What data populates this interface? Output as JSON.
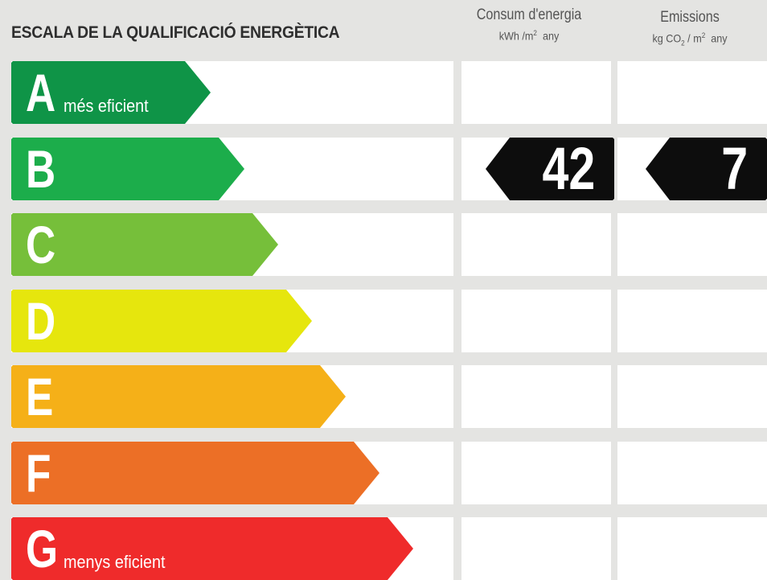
{
  "title": "ESCALA DE LA QUALIFICACIÓ ENERGÈTICA",
  "columns": {
    "energy": {
      "label": "Consum d'energia",
      "unit_prefix": "kWh /m",
      "unit_sup": "2",
      "unit_suffix": "any"
    },
    "emissions": {
      "label": "Emissions",
      "unit_prefix": "kg CO",
      "unit_sub": "2",
      "unit_mid": " / m",
      "unit_sup": "2",
      "unit_suffix": "any"
    }
  },
  "classes": [
    {
      "letter": "A",
      "label": "més eficient",
      "color": "#0f9447"
    },
    {
      "letter": "B",
      "label": "",
      "color": "#1cad4b"
    },
    {
      "letter": "C",
      "label": "",
      "color": "#76bf3a"
    },
    {
      "letter": "D",
      "label": "",
      "color": "#e6e60d"
    },
    {
      "letter": "E",
      "label": "",
      "color": "#f5b018"
    },
    {
      "letter": "F",
      "label": "",
      "color": "#ec6f26"
    },
    {
      "letter": "G",
      "label": "menys eficient",
      "color": "#ef2b2b"
    }
  ],
  "rating": {
    "class": "B",
    "energy_value": "42",
    "emissions_value": "7",
    "marker_color": "#0d0d0d"
  }
}
